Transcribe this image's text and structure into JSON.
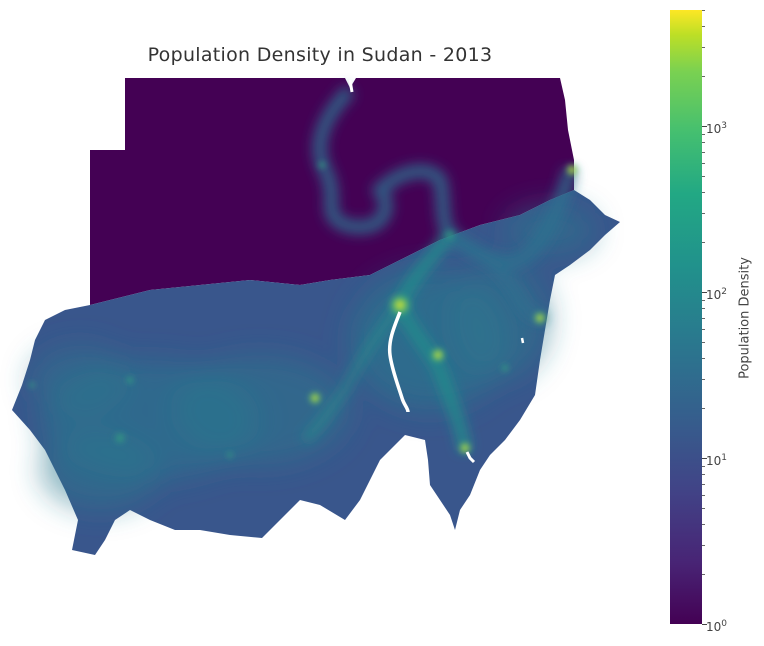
{
  "map": {
    "title": "Population Density in Sudan - 2013",
    "region": "Sudan",
    "year": "2013"
  },
  "colorbar": {
    "label": "Population Density",
    "scale": "log",
    "colormap": "viridis",
    "range": [
      1,
      5000
    ],
    "ticks": [
      {
        "base": "10",
        "exp": "0",
        "value": 1
      },
      {
        "base": "10",
        "exp": "1",
        "value": 10
      },
      {
        "base": "10",
        "exp": "2",
        "value": 100
      },
      {
        "base": "10",
        "exp": "3",
        "value": 1000
      }
    ]
  },
  "colors": {
    "low": "#440154",
    "mid_low": "#3b528b",
    "mid": "#21918c",
    "mid_high": "#5ec962",
    "high": "#fde725",
    "river": "#ffffff"
  }
}
